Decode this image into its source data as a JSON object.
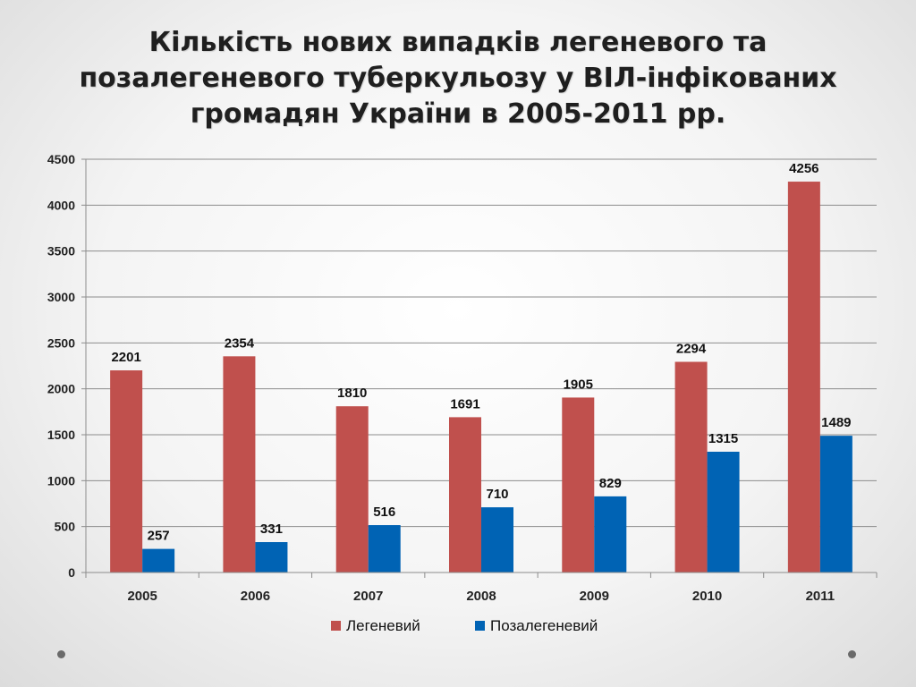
{
  "slide": {
    "title_lines": [
      "Кількість нових випадків легеневого та",
      "позалегеневого туберкульозу у ВІЛ-інфікованих",
      "громадян України в 2005-2011 рр."
    ]
  },
  "chart_data": {
    "type": "bar",
    "title": "Кількість нових випадків легеневого та позалегеневого туберкульозу у ВІЛ-інфікованих громадян України в 2005-2011 рр.",
    "categories": [
      "2005",
      "2006",
      "2007",
      "2008",
      "2009",
      "2010",
      "2011"
    ],
    "series": [
      {
        "name": "Легеневий",
        "color": "#c0504d",
        "values": [
          2201,
          2354,
          1810,
          1691,
          1905,
          2294,
          4256
        ]
      },
      {
        "name": "Позалегеневий",
        "color": "#0063b4",
        "values": [
          257,
          331,
          516,
          710,
          829,
          1315,
          1489
        ]
      }
    ],
    "ylim": [
      0,
      4500
    ],
    "yticks": [
      "0",
      "500",
      "1000",
      "1500",
      "2000",
      "2500",
      "3000",
      "3500",
      "4000",
      "4500"
    ],
    "grid": true,
    "legend": "bottom",
    "data_labels": true,
    "xlabel": "",
    "ylabel": ""
  }
}
